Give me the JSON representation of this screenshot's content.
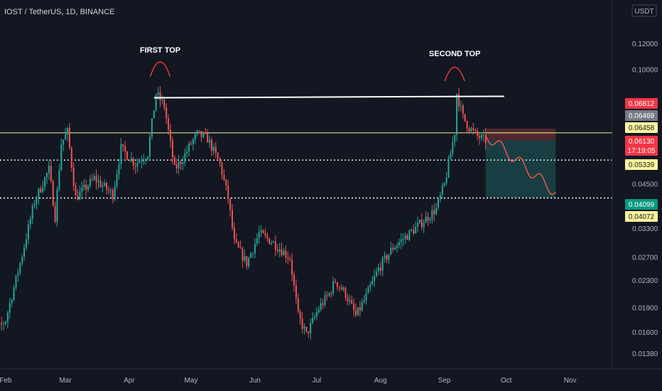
{
  "header": {
    "symbol_title": "IOST / TetherUS, 1D, BINANCE",
    "currency_button": "USDT"
  },
  "colors": {
    "background": "#131722",
    "up_candle": "#26a69a",
    "down_candle": "#ef5350",
    "axis_text": "#b2b5be",
    "annotation_line": "#ffffff",
    "support_line": "#fff59d",
    "top_arc": "#e53935",
    "projection_path": "#ef5350",
    "profit_zone": "#26a69a",
    "loss_zone": "#ef5350"
  },
  "chart_data": {
    "type": "candlestick",
    "title": "IOST / TetherUS, 1D, BINANCE",
    "y_scale": "log",
    "y_ticks": [
      "0.12000",
      "0.10000",
      "0.04500",
      "0.03300",
      "0.02700",
      "0.02300",
      "0.01900",
      "0.01600",
      "0.01380"
    ],
    "x_ticks": [
      "Feb",
      "Mar",
      "Apr",
      "May",
      "Jun",
      "Jul",
      "Aug",
      "Sep",
      "Oct",
      "Nov"
    ],
    "candle_range": {
      "start": "2021-01-20",
      "end": "2021-09-21"
    },
    "key_prices": {
      "start": 0.0145,
      "mar_early": 0.065,
      "apr_peak": 0.085,
      "may_early": 0.064,
      "jun_low": 0.026,
      "jul_low": 0.0158,
      "jul_end": 0.025,
      "aug_end": 0.038,
      "sep_peak": 0.085,
      "last": 0.0613
    },
    "annotations": [
      {
        "label": "FIRST TOP",
        "date": "2021-04-16"
      },
      {
        "label": "SECOND TOP",
        "date": "2021-09-06"
      }
    ],
    "resistance_line": {
      "price": 0.0825,
      "from": "2021-04-13",
      "to": "2021-09-30"
    },
    "horizontal_lines": [
      {
        "price": 0.06458,
        "style": "solid"
      },
      {
        "price": 0.05339,
        "style": "dotted"
      },
      {
        "price": 0.04099,
        "style": "dotted"
      }
    ],
    "position": {
      "entry": 0.0613,
      "stop": 0.0665,
      "target": 0.04099,
      "from": "2021-09-21",
      "to": "2021-10-25"
    },
    "price_tags": [
      {
        "value": "0.06812",
        "bg": "#f23645",
        "fg": "#ffffff"
      },
      {
        "value": "0.06469",
        "bg": "#787b86",
        "fg": "#ffffff"
      },
      {
        "value": "0.06458",
        "bg": "#fff59d",
        "fg": "#131722"
      },
      {
        "value": "0.06130",
        "countdown": "17:19:05",
        "bg": "#f23645",
        "fg": "#ffffff"
      },
      {
        "value": "0.05339",
        "bg": "#fff59d",
        "fg": "#131722"
      },
      {
        "value": "0.04099",
        "bg": "#089981",
        "fg": "#ffffff"
      },
      {
        "value": "0.04072",
        "bg": "#fff59d",
        "fg": "#131722"
      }
    ]
  }
}
